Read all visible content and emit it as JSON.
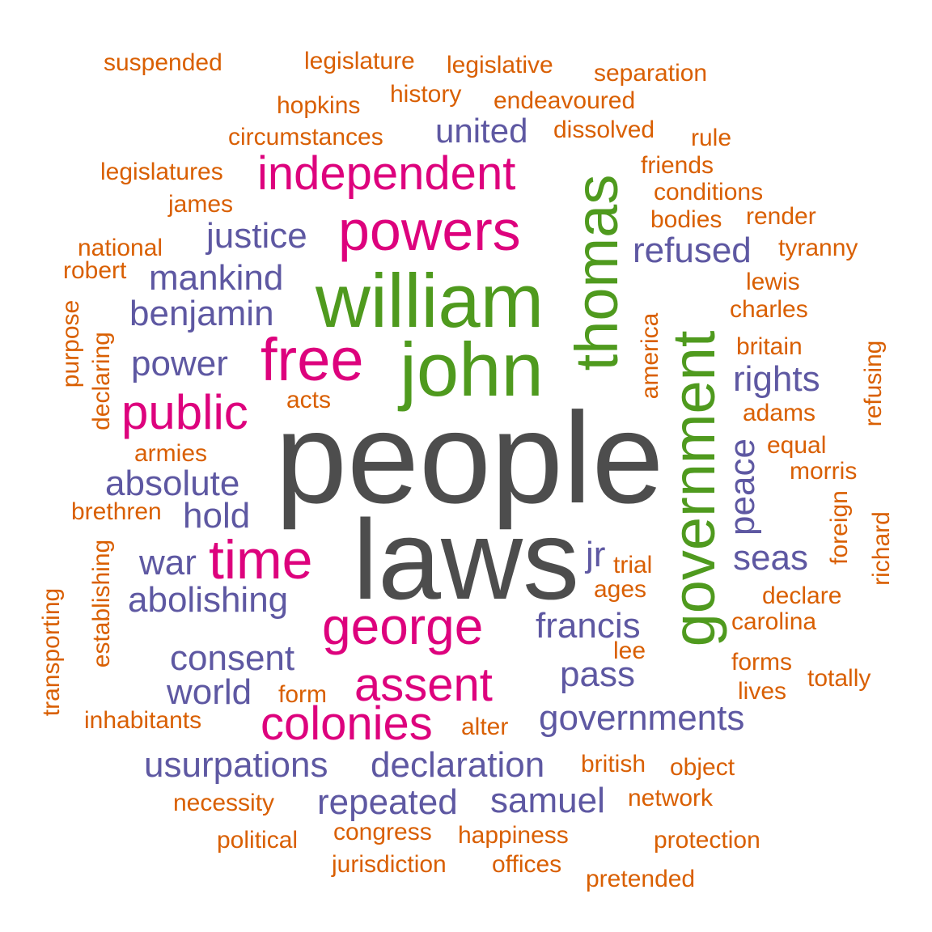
{
  "colors": {
    "orange": "#d95f02",
    "purple": "#5e58a2",
    "pink": "#dd027d",
    "green": "#4f9a1e",
    "gray": "#4d4d4d"
  },
  "words": [
    {
      "text": "people",
      "tier": "gray"
    },
    {
      "text": "laws",
      "tier": "gray"
    },
    {
      "text": "government",
      "tier": "green"
    },
    {
      "text": "william",
      "tier": "green"
    },
    {
      "text": "john",
      "tier": "green"
    },
    {
      "text": "thomas",
      "tier": "green"
    },
    {
      "text": "powers",
      "tier": "pink"
    },
    {
      "text": "free",
      "tier": "pink"
    },
    {
      "text": "independent",
      "tier": "pink"
    },
    {
      "text": "public",
      "tier": "pink"
    },
    {
      "text": "time",
      "tier": "pink"
    },
    {
      "text": "george",
      "tier": "pink"
    },
    {
      "text": "assent",
      "tier": "pink"
    },
    {
      "text": "colonies",
      "tier": "pink"
    },
    {
      "text": "united",
      "tier": "purple"
    },
    {
      "text": "justice",
      "tier": "purple"
    },
    {
      "text": "mankind",
      "tier": "purple"
    },
    {
      "text": "benjamin",
      "tier": "purple"
    },
    {
      "text": "power",
      "tier": "purple"
    },
    {
      "text": "refused",
      "tier": "purple"
    },
    {
      "text": "rights",
      "tier": "purple"
    },
    {
      "text": "absolute",
      "tier": "purple"
    },
    {
      "text": "hold",
      "tier": "purple"
    },
    {
      "text": "war",
      "tier": "purple"
    },
    {
      "text": "abolishing",
      "tier": "purple"
    },
    {
      "text": "peace",
      "tier": "purple"
    },
    {
      "text": "seas",
      "tier": "purple"
    },
    {
      "text": "jr",
      "tier": "purple"
    },
    {
      "text": "francis",
      "tier": "purple"
    },
    {
      "text": "consent",
      "tier": "purple"
    },
    {
      "text": "world",
      "tier": "purple"
    },
    {
      "text": "pass",
      "tier": "purple"
    },
    {
      "text": "governments",
      "tier": "purple"
    },
    {
      "text": "usurpations",
      "tier": "purple"
    },
    {
      "text": "declaration",
      "tier": "purple"
    },
    {
      "text": "repeated",
      "tier": "purple"
    },
    {
      "text": "samuel",
      "tier": "purple"
    },
    {
      "text": "suspended",
      "tier": "orange"
    },
    {
      "text": "legislature",
      "tier": "orange"
    },
    {
      "text": "legislative",
      "tier": "orange"
    },
    {
      "text": "separation",
      "tier": "orange"
    },
    {
      "text": "hopkins",
      "tier": "orange"
    },
    {
      "text": "history",
      "tier": "orange"
    },
    {
      "text": "endeavoured",
      "tier": "orange"
    },
    {
      "text": "circumstances",
      "tier": "orange"
    },
    {
      "text": "dissolved",
      "tier": "orange"
    },
    {
      "text": "rule",
      "tier": "orange"
    },
    {
      "text": "legislatures",
      "tier": "orange"
    },
    {
      "text": "friends",
      "tier": "orange"
    },
    {
      "text": "conditions",
      "tier": "orange"
    },
    {
      "text": "james",
      "tier": "orange"
    },
    {
      "text": "bodies",
      "tier": "orange"
    },
    {
      "text": "render",
      "tier": "orange"
    },
    {
      "text": "national",
      "tier": "orange"
    },
    {
      "text": "tyranny",
      "tier": "orange"
    },
    {
      "text": "robert",
      "tier": "orange"
    },
    {
      "text": "lewis",
      "tier": "orange"
    },
    {
      "text": "charles",
      "tier": "orange"
    },
    {
      "text": "purpose",
      "tier": "orange"
    },
    {
      "text": "declaring",
      "tier": "orange"
    },
    {
      "text": "america",
      "tier": "orange"
    },
    {
      "text": "britain",
      "tier": "orange"
    },
    {
      "text": "refusing",
      "tier": "orange"
    },
    {
      "text": "acts",
      "tier": "orange"
    },
    {
      "text": "adams",
      "tier": "orange"
    },
    {
      "text": "armies",
      "tier": "orange"
    },
    {
      "text": "equal",
      "tier": "orange"
    },
    {
      "text": "morris",
      "tier": "orange"
    },
    {
      "text": "brethren",
      "tier": "orange"
    },
    {
      "text": "foreign",
      "tier": "orange"
    },
    {
      "text": "richard",
      "tier": "orange"
    },
    {
      "text": "establishing",
      "tier": "orange"
    },
    {
      "text": "trial",
      "tier": "orange"
    },
    {
      "text": "transporting",
      "tier": "orange"
    },
    {
      "text": "ages",
      "tier": "orange"
    },
    {
      "text": "declare",
      "tier": "orange"
    },
    {
      "text": "carolina",
      "tier": "orange"
    },
    {
      "text": "lee",
      "tier": "orange"
    },
    {
      "text": "forms",
      "tier": "orange"
    },
    {
      "text": "totally",
      "tier": "orange"
    },
    {
      "text": "form",
      "tier": "orange"
    },
    {
      "text": "lives",
      "tier": "orange"
    },
    {
      "text": "inhabitants",
      "tier": "orange"
    },
    {
      "text": "alter",
      "tier": "orange"
    },
    {
      "text": "british",
      "tier": "orange"
    },
    {
      "text": "object",
      "tier": "orange"
    },
    {
      "text": "necessity",
      "tier": "orange"
    },
    {
      "text": "network",
      "tier": "orange"
    },
    {
      "text": "political",
      "tier": "orange"
    },
    {
      "text": "congress",
      "tier": "orange"
    },
    {
      "text": "happiness",
      "tier": "orange"
    },
    {
      "text": "protection",
      "tier": "orange"
    },
    {
      "text": "jurisdiction",
      "tier": "orange"
    },
    {
      "text": "offices",
      "tier": "orange"
    },
    {
      "text": "pretended",
      "tier": "orange"
    }
  ]
}
